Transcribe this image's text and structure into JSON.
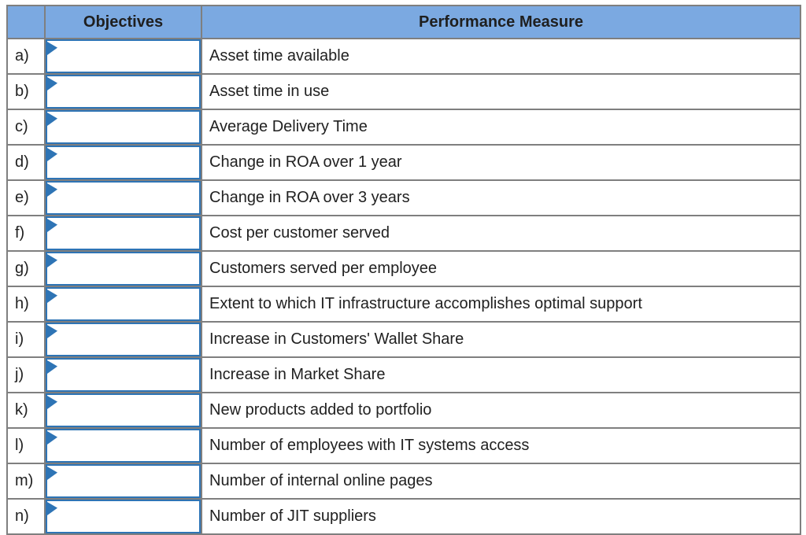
{
  "table": {
    "headers": {
      "letter": "",
      "objectives": "Objectives",
      "measure": "Performance Measure"
    },
    "rows": [
      {
        "letter": "a)",
        "objective_value": "",
        "measure": "Asset time available"
      },
      {
        "letter": "b)",
        "objective_value": "",
        "measure": "Asset time in use"
      },
      {
        "letter": "c)",
        "objective_value": "",
        "measure": "Average Delivery Time"
      },
      {
        "letter": "d)",
        "objective_value": "",
        "measure": "Change in ROA over 1 year"
      },
      {
        "letter": "e)",
        "objective_value": "",
        "measure": "Change in ROA over 3 years"
      },
      {
        "letter": "f)",
        "objective_value": "",
        "measure": "Cost per customer served"
      },
      {
        "letter": "g)",
        "objective_value": "",
        "measure": "Customers served per employee"
      },
      {
        "letter": "h)",
        "objective_value": "",
        "measure": "Extent to which IT infrastructure accomplishes optimal support"
      },
      {
        "letter": "i)",
        "objective_value": "",
        "measure": "Increase in Customers' Wallet Share"
      },
      {
        "letter": "j)",
        "objective_value": "",
        "measure": "Increase in Market Share"
      },
      {
        "letter": "k)",
        "objective_value": "",
        "measure": "New products added to portfolio"
      },
      {
        "letter": "l)",
        "objective_value": "",
        "measure": "Number of employees with IT systems access"
      },
      {
        "letter": "m)",
        "objective_value": "",
        "measure": "Number of internal online pages"
      },
      {
        "letter": "n)",
        "objective_value": "",
        "measure": "Number of JIT suppliers"
      }
    ]
  },
  "icons": {
    "dropdown_flag": "dropdown-flag-icon"
  },
  "colors": {
    "header_bg": "#7ba9e1",
    "grid_border": "#7f7f7f",
    "dropdown_border": "#2e74b5",
    "text": "#212121",
    "header_text": "#1f1f1f",
    "page_bg": "#ffffff"
  }
}
